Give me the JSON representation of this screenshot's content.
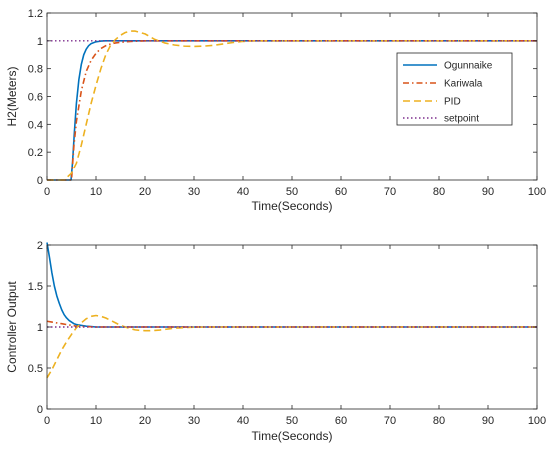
{
  "chart_data": [
    {
      "type": "line",
      "xlabel": "Time(Seconds)",
      "ylabel": "H2(Meters)",
      "xlim": [
        0,
        100
      ],
      "ylim": [
        0,
        1.2
      ],
      "xticks": [
        "0",
        "10",
        "20",
        "30",
        "40",
        "50",
        "60",
        "70",
        "80",
        "90",
        "100"
      ],
      "yticks": [
        "0",
        "0.2",
        "0.4",
        "0.6",
        "0.8",
        "1",
        "1.2"
      ],
      "legend_position": "top-right",
      "grid": false,
      "series": [
        {
          "name": "Ogunnaike",
          "color": "#0072BD",
          "style": "solid",
          "x": [
            0,
            4.9,
            5.2,
            5.6,
            6,
            6.5,
            7,
            7.5,
            8,
            8.5,
            9,
            10,
            11,
            12,
            14,
            100
          ],
          "y": [
            0,
            0,
            0.12,
            0.35,
            0.55,
            0.72,
            0.83,
            0.9,
            0.94,
            0.965,
            0.98,
            0.993,
            0.998,
            1.0,
            1.0,
            1.0
          ]
        },
        {
          "name": "Kariwala",
          "color": "#D95319",
          "style": "dashdot",
          "x": [
            0,
            5,
            5.5,
            6,
            7,
            8,
            9,
            10,
            11,
            12,
            13,
            14,
            16,
            18,
            20,
            100
          ],
          "y": [
            0,
            0,
            0.25,
            0.42,
            0.64,
            0.78,
            0.86,
            0.91,
            0.945,
            0.965,
            0.978,
            0.985,
            0.993,
            0.997,
            1.0,
            1.0
          ]
        },
        {
          "name": "PID",
          "color": "#EDB120",
          "style": "dashed",
          "x": [
            0,
            3.5,
            5,
            6,
            7,
            8,
            9,
            10,
            11,
            12,
            13,
            14,
            15,
            16,
            17,
            18,
            19,
            20,
            21,
            22,
            24,
            26,
            28,
            30,
            32,
            34,
            36,
            38,
            40,
            42,
            45,
            100
          ],
          "y": [
            0,
            0,
            0.05,
            0.12,
            0.25,
            0.4,
            0.55,
            0.68,
            0.8,
            0.9,
            0.97,
            1.01,
            1.04,
            1.06,
            1.07,
            1.07,
            1.06,
            1.05,
            1.03,
            1.01,
            0.985,
            0.97,
            0.962,
            0.96,
            0.962,
            0.968,
            0.978,
            0.988,
            0.996,
            1.0,
            1.0,
            1.0
          ]
        },
        {
          "name": "setpoint",
          "color": "#7E2F8E",
          "style": "dotted",
          "x": [
            0,
            100
          ],
          "y": [
            1,
            1
          ]
        }
      ]
    },
    {
      "type": "line",
      "xlabel": "Time(Seconds)",
      "ylabel": "Controller Output",
      "xlim": [
        0,
        100
      ],
      "ylim": [
        0,
        2
      ],
      "xticks": [
        "0",
        "10",
        "20",
        "30",
        "40",
        "50",
        "60",
        "70",
        "80",
        "90",
        "100"
      ],
      "yticks": [
        "0",
        "0.5",
        "1",
        "1.5",
        "2"
      ],
      "grid": false,
      "series": [
        {
          "color": "#0072BD",
          "style": "solid",
          "x": [
            0,
            0.5,
            1,
            1.5,
            2,
            2.5,
            3,
            3.5,
            4,
            4.5,
            5,
            5.5,
            6,
            7,
            8,
            9,
            10,
            100
          ],
          "y": [
            2.03,
            1.85,
            1.66,
            1.5,
            1.38,
            1.29,
            1.21,
            1.15,
            1.11,
            1.08,
            1.06,
            1.04,
            1.03,
            1.02,
            1.01,
            1.005,
            1.0,
            1.0
          ]
        },
        {
          "color": "#D95319",
          "style": "dashdot",
          "x": [
            0,
            1,
            2,
            3,
            4,
            5,
            6,
            8,
            10,
            100
          ],
          "y": [
            1.07,
            1.06,
            1.05,
            1.04,
            1.03,
            1.02,
            1.01,
            1.005,
            1.0,
            1.0
          ]
        },
        {
          "color": "#EDB120",
          "style": "dashed",
          "x": [
            0,
            1,
            2,
            3,
            4,
            5,
            6,
            7,
            8,
            9,
            10,
            11,
            12,
            13,
            14,
            15,
            16,
            17,
            18,
            19,
            20,
            21,
            22,
            23,
            24,
            25,
            26,
            28,
            30,
            33,
            36,
            100
          ],
          "y": [
            0.38,
            0.48,
            0.6,
            0.72,
            0.82,
            0.91,
            0.99,
            1.05,
            1.1,
            1.13,
            1.14,
            1.13,
            1.11,
            1.08,
            1.05,
            1.02,
            1.0,
            0.98,
            0.965,
            0.958,
            0.955,
            0.955,
            0.958,
            0.963,
            0.97,
            0.978,
            0.985,
            0.993,
            0.998,
            1.0,
            1.0,
            1.0
          ]
        },
        {
          "color": "#7E2F8E",
          "style": "dotted",
          "x": [
            0,
            100
          ],
          "y": [
            1,
            1
          ]
        }
      ]
    }
  ]
}
